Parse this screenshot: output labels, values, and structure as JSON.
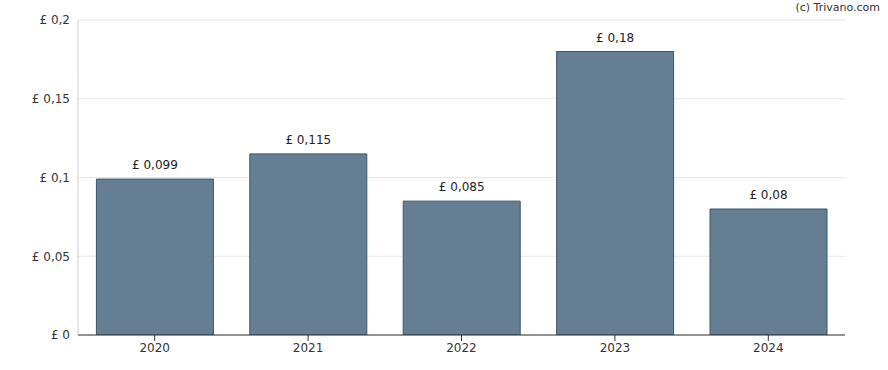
{
  "chart_data": {
    "type": "bar",
    "annotations": [
      "(c) Trivano.com"
    ],
    "categories": [
      "2020",
      "2021",
      "2022",
      "2023",
      "2024"
    ],
    "values": [
      0.099,
      0.115,
      0.085,
      0.18,
      0.08
    ],
    "value_labels": [
      "£ 0,099",
      "£ 0,115",
      "£ 0,085",
      "£ 0,18",
      "£ 0,08"
    ],
    "color": "#647f94",
    "ylim": [
      0,
      0.2
    ],
    "yticks": [
      {
        "value": 0,
        "label": "£ 0"
      },
      {
        "value": 0.05,
        "label": "£ 0,05"
      },
      {
        "value": 0.1,
        "label": "£ 0,1"
      },
      {
        "value": 0.15,
        "label": "£ 0,15"
      },
      {
        "value": 0.2,
        "label": "£ 0,2"
      }
    ],
    "grid": true,
    "data_labels": true
  }
}
